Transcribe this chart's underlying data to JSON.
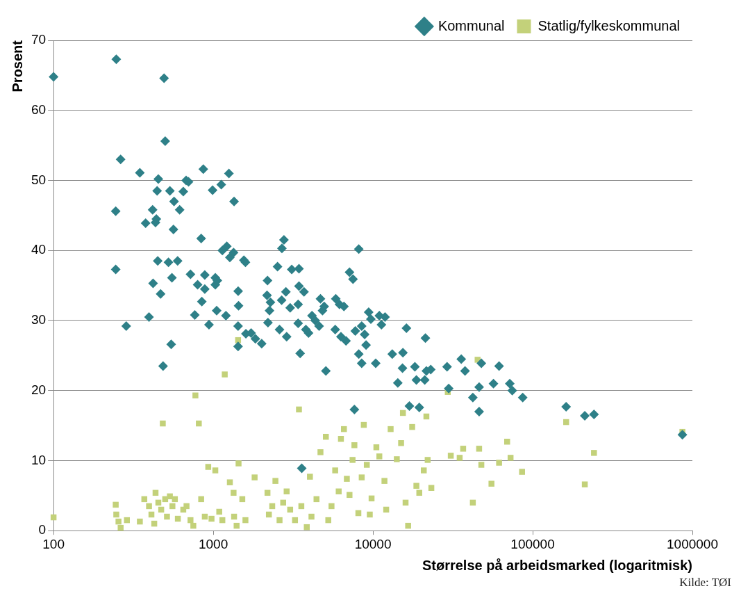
{
  "chart_data": {
    "type": "scatter",
    "xlabel": "Størrelse på arbeidsmarked (logaritmisk)",
    "ylabel": "Prosent",
    "annotations": [
      "Kilde: TØI"
    ],
    "log": "x",
    "grid": "y",
    "legend": "top right",
    "xlim": [
      100,
      1000000
    ],
    "xticks": [
      100,
      1000,
      10000,
      100000,
      1000000
    ],
    "ylim": [
      0,
      70
    ],
    "yticks": [
      0,
      10,
      20,
      30,
      40,
      50,
      60,
      70
    ],
    "series": [
      {
        "name": "Kommunal",
        "color": "#2e8088",
        "marker": "diamond",
        "x": [
          100,
          247,
          492,
          500,
          263,
          347,
          245,
          245,
          285,
          396,
          377,
          453,
          445,
          417,
          440,
          435,
          449,
          420,
          468,
          485,
          535,
          524,
          563,
          568,
          616,
          649,
          598,
          551,
          545,
          676,
          700,
          720,
          798,
          766,
          866,
          840,
          848,
          885,
          885,
          940,
          990,
          1030,
          1030,
          1060,
          1050,
          1122,
          1140,
          1200,
          1215,
          1253,
          1350,
          1340,
          1270,
          1432,
          1440,
          1430,
          1430,
          1555,
          1590,
          1600,
          1725,
          1835,
          2010,
          2185,
          2170,
          2200,
          2250,
          2280,
          2525,
          2600,
          2680,
          2770,
          2690,
          2850,
          2880,
          3030,
          3100,
          3440,
          3400,
          3400,
          3440,
          3500,
          3580,
          3700,
          3800,
          3950,
          4150,
          4350,
          4600,
          4690,
          4830,
          4950,
          5070,
          5800,
          5850,
          6170,
          6300,
          6580,
          6780,
          7130,
          7500,
          7650,
          8150,
          7750,
          8150,
          8500,
          8500,
          8870,
          9050,
          9400,
          9700,
          10400,
          10960,
          11300,
          11900,
          13200,
          14300,
          15400,
          15300,
          16200,
          16900,
          18300,
          18700,
          19500,
          21600,
          21100,
          21300,
          23000,
          29100,
          29800,
          35700,
          37700,
          42200,
          46200,
          46200,
          47700,
          56800,
          61600,
          71900,
          74500,
          86600,
          162000,
          212000,
          242000,
          866000
        ],
        "values": [
          64.8,
          67.3,
          64.6,
          55.6,
          53,
          51.1,
          45.6,
          37.3,
          29.2,
          30.5,
          43.9,
          50.2,
          48.5,
          45.8,
          44.5,
          44,
          38.5,
          35.3,
          33.8,
          23.5,
          48.5,
          38.3,
          43,
          47,
          45.8,
          48.4,
          38.5,
          36.1,
          26.6,
          50,
          49.8,
          36.6,
          35.1,
          30.8,
          51.6,
          41.7,
          32.7,
          34.5,
          36.5,
          29.4,
          48.6,
          36.1,
          35.1,
          35.7,
          31.4,
          49.4,
          40,
          30.7,
          40.6,
          51,
          47,
          39.7,
          39,
          34.2,
          32.1,
          29.2,
          26.3,
          38.6,
          38.3,
          28.1,
          28.2,
          27.4,
          26.7,
          35.7,
          33.6,
          29.7,
          31.4,
          32.6,
          37.7,
          28.7,
          32.9,
          41.5,
          40.3,
          34.1,
          27.7,
          31.8,
          37.3,
          37.4,
          29.6,
          32.3,
          34.9,
          25.3,
          8.9,
          34.1,
          28.7,
          28.2,
          30.7,
          30,
          29.2,
          33.1,
          31.4,
          32,
          22.8,
          28.7,
          33.1,
          32.3,
          27.7,
          32,
          27.1,
          36.9,
          35.9,
          17.3,
          40.2,
          28.5,
          25.2,
          23.9,
          29.2,
          28,
          26.5,
          31.2,
          30.2,
          23.9,
          30.7,
          29.4,
          30.5,
          25.2,
          21.1,
          25.4,
          23.2,
          28.9,
          17.8,
          23.4,
          21.5,
          17.6,
          22.8,
          21.5,
          27.5,
          23,
          23.4,
          20.3,
          24.5,
          22.8,
          19,
          20.5,
          17,
          23.9,
          21,
          23.5,
          21,
          20,
          19,
          17.7,
          16.4,
          16.6,
          13.7
        ]
      },
      {
        "name": "Statlig/fylkeskommunal",
        "color": "#c3d17a",
        "marker": "square",
        "x": [
          100,
          245,
          247,
          255,
          263,
          288,
          347,
          370,
          396,
          410,
          427,
          435,
          453,
          472,
          483,
          500,
          513,
          535,
          555,
          575,
          600,
          649,
          680,
          720,
          750,
          773,
          812,
          840,
          885,
          930,
          975,
          1030,
          1090,
          1140,
          1180,
          1270,
          1340,
          1350,
          1400,
          1430,
          1440,
          1520,
          1590,
          1815,
          2185,
          2230,
          2340,
          2450,
          2600,
          2740,
          2880,
          3030,
          3250,
          3440,
          3560,
          3850,
          4030,
          4120,
          4430,
          4690,
          5070,
          5250,
          5500,
          5800,
          6100,
          6300,
          6580,
          6860,
          7130,
          7450,
          7650,
          8100,
          8500,
          8760,
          9150,
          9550,
          9800,
          10500,
          10960,
          11800,
          12100,
          12900,
          14100,
          15000,
          15400,
          16000,
          16600,
          17600,
          18700,
          19500,
          20800,
          21600,
          22000,
          23200,
          29400,
          30700,
          34900,
          36700,
          42200,
          45200,
          46200,
          47700,
          55200,
          61600,
          69200,
          72700,
          85800,
          162000,
          212000,
          242000,
          866000
        ],
        "values": [
          1.9,
          3.7,
          2.3,
          1.3,
          0.4,
          1.5,
          1.3,
          4.5,
          3.5,
          2.3,
          1,
          5.4,
          4,
          3,
          15.3,
          4.5,
          2,
          4.9,
          3.5,
          4.5,
          1.7,
          3,
          3.5,
          1.5,
          0.7,
          19.3,
          15.3,
          4.5,
          2,
          9.1,
          1.7,
          8.6,
          2.7,
          1.5,
          22.3,
          6.9,
          5.4,
          2,
          0.7,
          27.2,
          9.6,
          4.5,
          1.5,
          7.6,
          5.4,
          2.3,
          3.5,
          7.1,
          1.5,
          4,
          5.6,
          3,
          1.5,
          17.3,
          3.5,
          0.5,
          7.7,
          2,
          4.5,
          11.2,
          13.4,
          1.5,
          3.5,
          8.6,
          5.6,
          13.1,
          14.5,
          7.4,
          5.1,
          10.1,
          12.2,
          2.5,
          7.6,
          15.1,
          9.4,
          2.3,
          4.6,
          11.9,
          10.6,
          7.1,
          3,
          14.5,
          10.2,
          12.5,
          16.8,
          4,
          0.7,
          14.8,
          6.4,
          5.4,
          8.6,
          16.3,
          10.1,
          6.1,
          19.8,
          10.7,
          10.4,
          11.7,
          4,
          24.4,
          11.7,
          9.4,
          6.7,
          9.7,
          12.7,
          10.4,
          8.4,
          15.5,
          6.6,
          11.1,
          14.1
        ]
      }
    ]
  }
}
